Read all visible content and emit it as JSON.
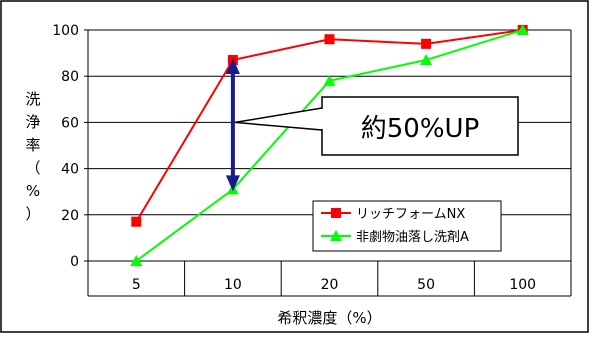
{
  "chart_data": {
    "type": "line",
    "categories": [
      "5",
      "10",
      "20",
      "50",
      "100"
    ],
    "series": [
      {
        "name": "リッチフォームNX",
        "color": "#ff0000",
        "marker": "square",
        "values": [
          17,
          87,
          96,
          94,
          100
        ]
      },
      {
        "name": "非劇物油落し洗剤A",
        "color": "#00ff00",
        "marker": "triangle",
        "values": [
          0,
          31,
          78,
          87,
          100
        ]
      }
    ],
    "xlabel": "希釈濃度（%）",
    "ylabel": "洗浄率（%）",
    "ylim": [
      0,
      100
    ],
    "yticks": [
      0,
      20,
      40,
      60,
      80,
      100
    ],
    "grid": true,
    "legend_position": "bottom-right",
    "annotation": {
      "text": "約50%UP",
      "arrow_category": "10",
      "arrow_from": 31,
      "arrow_to": 87,
      "arrow_color": "#1a1a8c"
    }
  }
}
